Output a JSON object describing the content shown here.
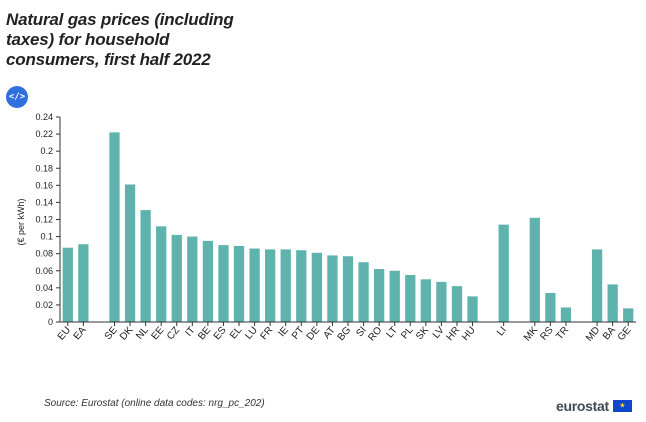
{
  "header": {
    "title": "Natural gas prices (including\ntaxes) for household\nconsumers, first half 2022",
    "embed_icon_text": "</>"
  },
  "footer": {
    "source": "Source: Eurostat (online data codes: nrg_pc_202)",
    "logo_text": "eurostat",
    "flag_stars": "★"
  },
  "colors": {
    "bar": "#5fb3ad",
    "axis": "#333333"
  },
  "chart_data": {
    "type": "bar",
    "ylabel": "(€ per kWh)",
    "ylim": [
      0,
      0.24
    ],
    "yticks": [
      0,
      0.02,
      0.04,
      0.06,
      0.08,
      0.1,
      0.12,
      0.14,
      0.16,
      0.18,
      0.2,
      0.22,
      0.24
    ],
    "ytick_labels": [
      "0",
      "0.02",
      "0.04",
      "0.06",
      "0.08",
      "0.1",
      "0.12",
      "0.14",
      "0.16",
      "0.18",
      "0.2",
      "0.22",
      "0.24"
    ],
    "categories": [
      "EU",
      "EA",
      "",
      "SE",
      "DK",
      "NL",
      "EE",
      "CZ",
      "IT",
      "BE",
      "ES",
      "EL",
      "LU",
      "FR",
      "IE",
      "PT",
      "DE",
      "AT",
      "BG",
      "SI",
      "RO",
      "LT",
      "PL",
      "SK",
      "LV",
      "HR",
      "HU",
      "",
      "LI",
      "",
      "MK",
      "RS",
      "TR",
      "",
      "MD",
      "BA",
      "GE"
    ],
    "values": [
      0.087,
      0.091,
      null,
      0.222,
      0.161,
      0.131,
      0.112,
      0.102,
      0.1,
      0.095,
      0.09,
      0.089,
      0.086,
      0.085,
      0.085,
      0.084,
      0.081,
      0.078,
      0.077,
      0.07,
      0.062,
      0.06,
      0.055,
      0.05,
      0.047,
      0.042,
      0.03,
      null,
      0.114,
      null,
      0.122,
      0.034,
      0.017,
      null,
      0.085,
      0.044,
      0.016
    ],
    "grid": false,
    "legend": "none"
  }
}
